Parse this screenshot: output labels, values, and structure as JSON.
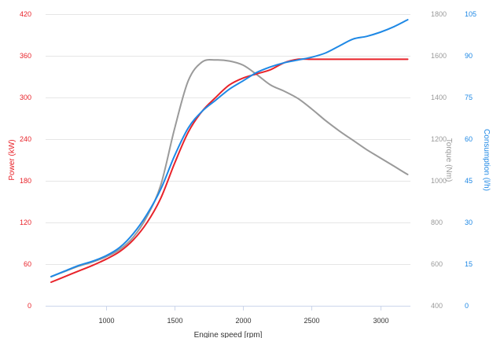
{
  "chart_data": {
    "type": "line",
    "title": "",
    "xlabel": "Engine speed [rpm]",
    "xlim": [
      560,
      3220
    ],
    "x_ticks": [
      1000,
      1500,
      2000,
      2500,
      3000
    ],
    "axes": [
      {
        "id": "power",
        "label": "Power (kW)",
        "color": "#e8232a",
        "side": "left",
        "lim": [
          0,
          420
        ],
        "ticks": [
          0,
          60,
          120,
          180,
          240,
          300,
          360,
          420
        ]
      },
      {
        "id": "torque",
        "label": "Torque (Nm)",
        "color": "#9a9a9a",
        "side": "right",
        "lim": [
          400,
          1800
        ],
        "ticks": [
          400,
          600,
          800,
          1000,
          1200,
          1400,
          1600,
          1800
        ]
      },
      {
        "id": "consumption",
        "label": "Consumption (l/h)",
        "color": "#1e88e5",
        "side": "right",
        "lim": [
          0,
          105
        ],
        "ticks": [
          0,
          15,
          30,
          45,
          60,
          75,
          90,
          105
        ]
      }
    ],
    "series": [
      {
        "axis": "power",
        "color": "#e8232a",
        "points": [
          [
            600,
            34
          ],
          [
            700,
            42
          ],
          [
            800,
            50
          ],
          [
            900,
            58
          ],
          [
            1000,
            67
          ],
          [
            1100,
            78
          ],
          [
            1200,
            95
          ],
          [
            1300,
            120
          ],
          [
            1400,
            155
          ],
          [
            1500,
            205
          ],
          [
            1600,
            250
          ],
          [
            1700,
            280
          ],
          [
            1800,
            300
          ],
          [
            1900,
            318
          ],
          [
            2000,
            328
          ],
          [
            2100,
            334
          ],
          [
            2200,
            340
          ],
          [
            2300,
            350
          ],
          [
            2400,
            355
          ],
          [
            2500,
            355
          ],
          [
            2600,
            355
          ],
          [
            2700,
            355
          ],
          [
            2800,
            355
          ],
          [
            2900,
            355
          ],
          [
            3000,
            355
          ],
          [
            3100,
            355
          ],
          [
            3200,
            355
          ]
        ]
      },
      {
        "axis": "torque",
        "color": "#9a9a9a",
        "points": [
          [
            600,
            540
          ],
          [
            700,
            565
          ],
          [
            800,
            590
          ],
          [
            900,
            610
          ],
          [
            1000,
            635
          ],
          [
            1100,
            670
          ],
          [
            1200,
            730
          ],
          [
            1300,
            830
          ],
          [
            1400,
            980
          ],
          [
            1500,
            1250
          ],
          [
            1600,
            1480
          ],
          [
            1700,
            1570
          ],
          [
            1800,
            1580
          ],
          [
            1900,
            1575
          ],
          [
            2000,
            1555
          ],
          [
            2100,
            1510
          ],
          [
            2200,
            1460
          ],
          [
            2300,
            1430
          ],
          [
            2400,
            1395
          ],
          [
            2500,
            1345
          ],
          [
            2600,
            1290
          ],
          [
            2700,
            1240
          ],
          [
            2800,
            1195
          ],
          [
            2900,
            1150
          ],
          [
            3000,
            1110
          ],
          [
            3100,
            1070
          ],
          [
            3200,
            1030
          ]
        ]
      },
      {
        "axis": "consumption",
        "color": "#1e88e5",
        "points": [
          [
            600,
            10.5
          ],
          [
            700,
            12.5
          ],
          [
            800,
            14.5
          ],
          [
            900,
            16
          ],
          [
            1000,
            18
          ],
          [
            1100,
            21
          ],
          [
            1200,
            26
          ],
          [
            1300,
            33
          ],
          [
            1400,
            42
          ],
          [
            1500,
            54
          ],
          [
            1600,
            64
          ],
          [
            1700,
            70
          ],
          [
            1800,
            74
          ],
          [
            1900,
            78
          ],
          [
            2000,
            81
          ],
          [
            2100,
            84
          ],
          [
            2200,
            86
          ],
          [
            2300,
            87.5
          ],
          [
            2400,
            88.5
          ],
          [
            2500,
            89.5
          ],
          [
            2600,
            91
          ],
          [
            2700,
            93.5
          ],
          [
            2800,
            96
          ],
          [
            2900,
            97
          ],
          [
            3000,
            98.5
          ],
          [
            3100,
            100.5
          ],
          [
            3200,
            103
          ]
        ]
      }
    ]
  }
}
